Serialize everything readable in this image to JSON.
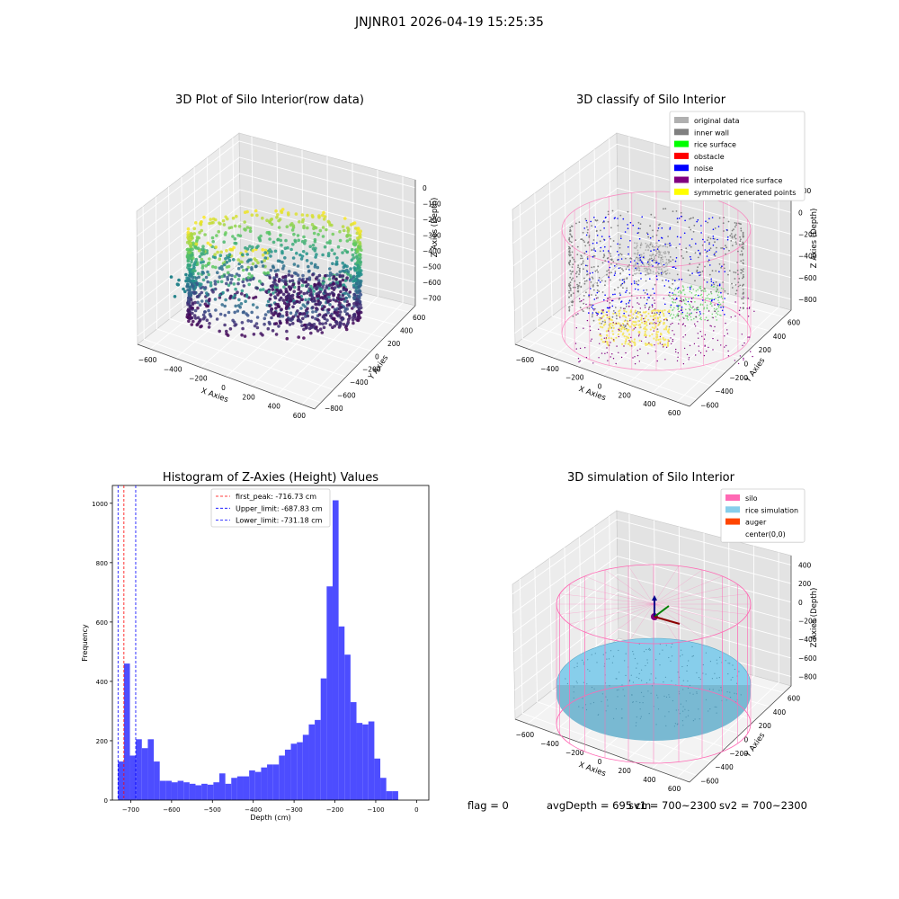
{
  "suptitle": "JNJNR01 2026-04-19 15:25:35",
  "footer": {
    "flag": "flag = 0",
    "avg": "avgDepth = 695 cm",
    "sv1": "sv1 = 700~2300",
    "sv2": "sv2 = 700~2300"
  },
  "colors": {
    "original": "#b0b0b0",
    "inner_wall": "#808080",
    "rice_surface": "#00ff00",
    "obstacle": "#ff0000",
    "noise": "#0000ff",
    "interpolated": "#800080",
    "symmetric": "#ffff00",
    "silo": "#ff69b4",
    "rice_sim": "#87ceeb",
    "auger": "#ff4500",
    "hist_bar": "#4d4dff"
  },
  "chart_data": [
    {
      "type": "scatter",
      "subtype": "3d",
      "title": "3D Plot of Silo Interior(row data)",
      "xlabel": "X Axies",
      "ylabel": "Y Axies",
      "zlabel": "Z Axies (Depth)",
      "xticks": [
        "−600",
        "−400",
        "−200",
        "0",
        "200",
        "400",
        "600"
      ],
      "yticks": [
        "−800",
        "−600",
        "−400",
        "−200",
        "0",
        "200",
        "400",
        "600"
      ],
      "zticks": [
        "−700",
        "−600",
        "−500",
        "−400",
        "−300",
        "−200",
        "−100",
        "0"
      ],
      "colormap": "viridis"
    },
    {
      "type": "scatter",
      "subtype": "3d",
      "title": "3D classify of Silo Interior",
      "xlabel": "X Axies",
      "ylabel": "Y Axies",
      "zlabel": "Z Axies (Depth)",
      "xticks": [
        "−600",
        "−400",
        "−200",
        "0",
        "200",
        "400",
        "600"
      ],
      "yticks": [
        "−600",
        "−400",
        "−200",
        "0",
        "200",
        "400",
        "600"
      ],
      "zticks": [
        "−800",
        "−600",
        "−400",
        "−200",
        "0",
        "200"
      ],
      "legend": [
        "original data",
        "inner wall",
        "rice surface",
        "obstacle",
        "noise",
        "interpolated rice surface",
        "symmetric generated points"
      ],
      "legend_position": "top-right"
    },
    {
      "type": "bar",
      "subtype": "histogram",
      "title": "Histogram of Z-Axies (Height) Values",
      "xlabel": "Depth (cm)",
      "ylabel": "Frequency",
      "xlim": [
        -745,
        30
      ],
      "ylim": [
        0,
        1060
      ],
      "xticks": [
        "−700",
        "−600",
        "−500",
        "−400",
        "−300",
        "−200",
        "−100",
        "0"
      ],
      "yticks": [
        "0",
        "200",
        "400",
        "600",
        "800",
        "1000"
      ],
      "bin_width": 14.6,
      "bin_start": -731.2,
      "counts": [
        130,
        460,
        150,
        205,
        175,
        205,
        130,
        65,
        65,
        60,
        65,
        60,
        55,
        50,
        55,
        52,
        60,
        90,
        55,
        75,
        80,
        80,
        100,
        95,
        110,
        120,
        120,
        150,
        170,
        190,
        195,
        220,
        255,
        270,
        410,
        720,
        1010,
        585,
        490,
        330,
        260,
        255,
        265,
        140,
        75,
        30,
        30
      ],
      "vlines": [
        {
          "x": -716.73,
          "label": "first_peak: -716.73 cm",
          "color": "#ff0000"
        },
        {
          "x": -687.83,
          "label": "Upper_limit: -687.83 cm",
          "color": "#0000ff"
        },
        {
          "x": -731.18,
          "label": "Lower_limit: -731.18 cm",
          "color": "#0000ff"
        }
      ],
      "legend_position": "top-center"
    },
    {
      "type": "scatter",
      "subtype": "3d",
      "title": "3D simulation of Silo Interior",
      "xlabel": "X Axies",
      "ylabel": "Y Axies",
      "zlabel": "Z Axies (Depth)",
      "xticks": [
        "−600",
        "−400",
        "−200",
        "0",
        "200",
        "400",
        "600"
      ],
      "yticks": [
        "−600",
        "−400",
        "−200",
        "0",
        "200",
        "400",
        "600"
      ],
      "zticks": [
        "−800",
        "−600",
        "−400",
        "−200",
        "0",
        "200",
        "400"
      ],
      "legend": [
        "silo",
        "rice simulation",
        "auger",
        "center(0,0)"
      ],
      "legend_position": "top-right"
    }
  ]
}
